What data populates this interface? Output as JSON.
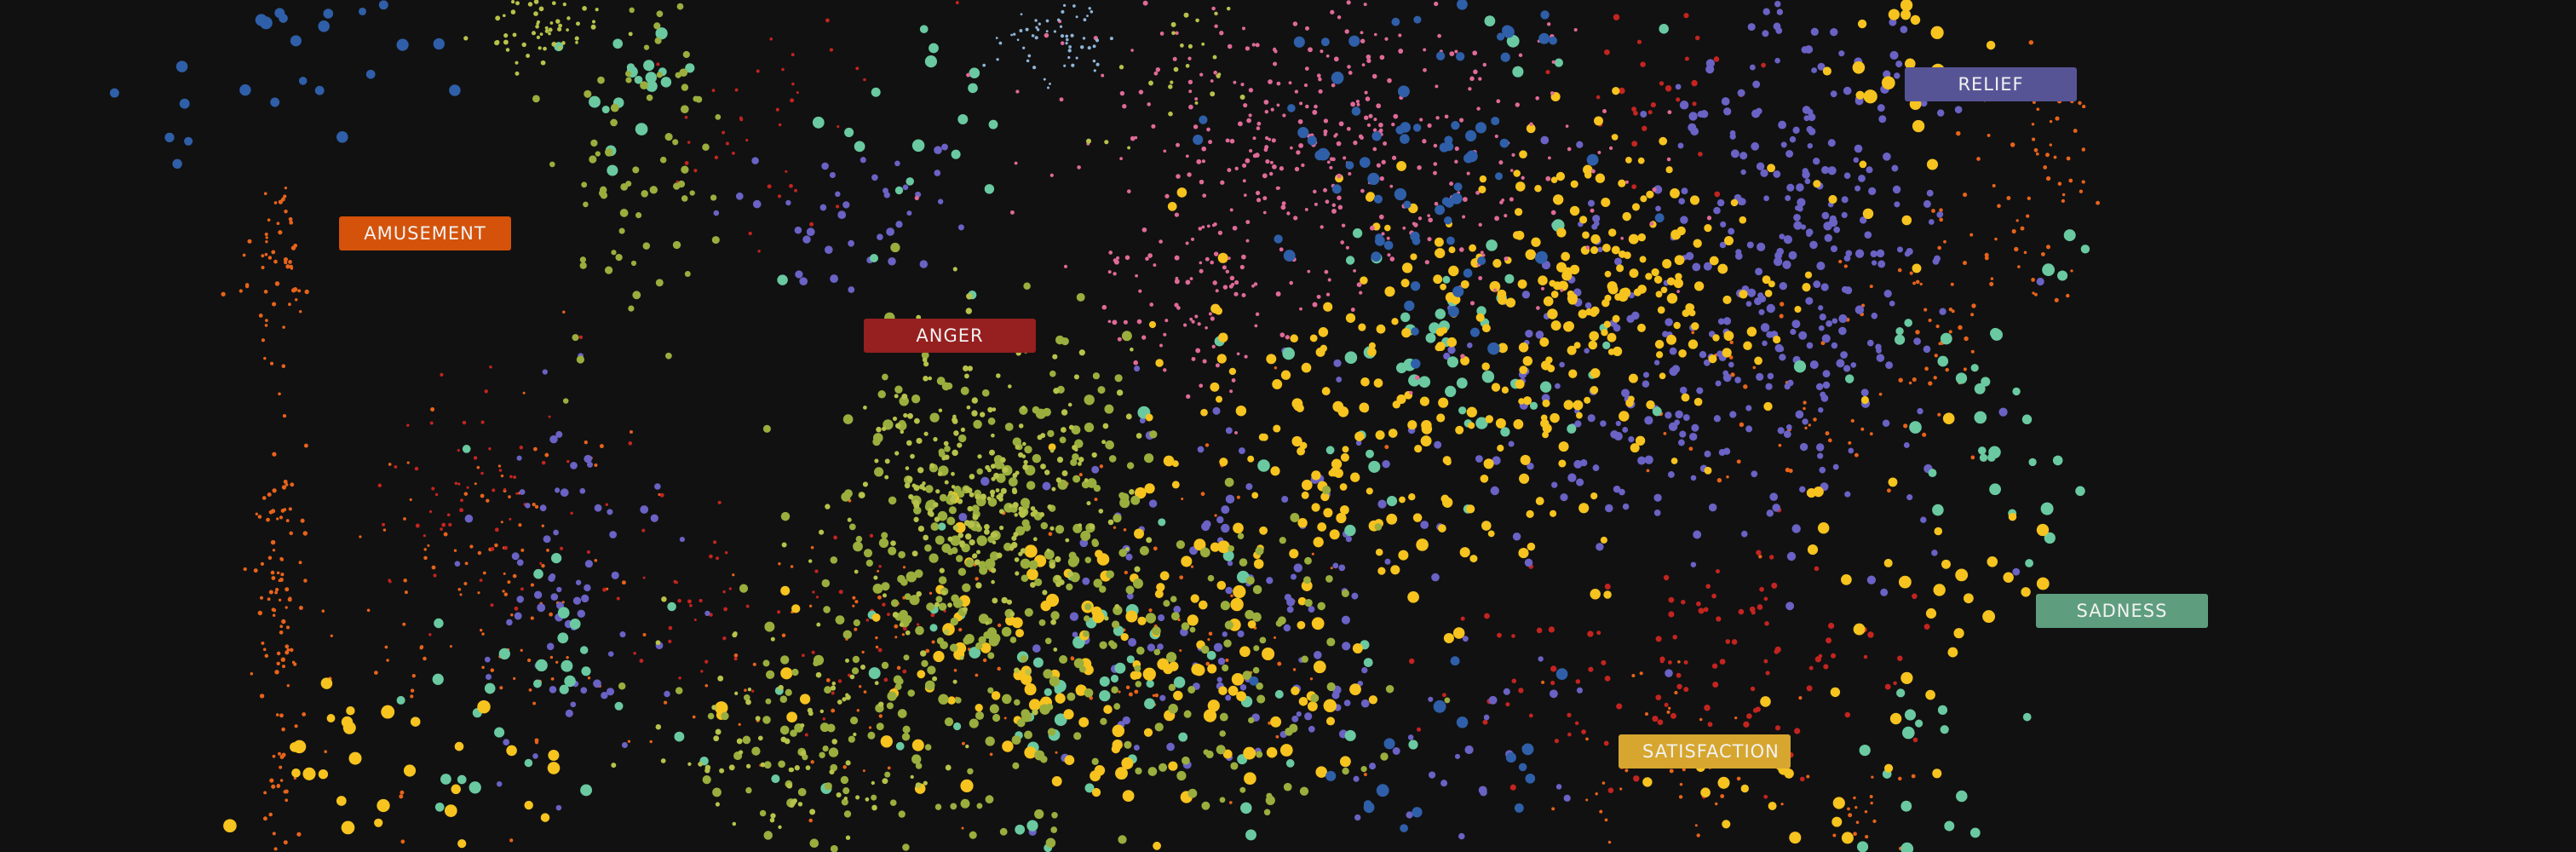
{
  "colors": {
    "background": "#111111",
    "amusement": "#d4520a",
    "anger": "#961f1f",
    "relief": "#575496",
    "sadness": "#5e9e7e",
    "satisfaction": "#d6a62e"
  },
  "chart_data": {
    "type": "scatter",
    "title": "",
    "xlabel": "",
    "ylabel": "",
    "grid": false,
    "axes_visible": false,
    "legend": "cluster labels placed directly on the map",
    "series": [
      {
        "name": "AMUSEMENT",
        "color": "#e8631a",
        "marker": "small dot"
      },
      {
        "name": "ANGER",
        "color": "#c42420",
        "marker": "small dot"
      },
      {
        "name": "RELIEF",
        "color": "#6a62c4",
        "marker": "medium dot"
      },
      {
        "name": "SADNESS",
        "color": "#6ac9a1",
        "marker": "large dot"
      },
      {
        "name": "SATISFACTION",
        "color": "#f6c31f",
        "marker": "large dot"
      },
      {
        "color": "#9aae3e",
        "marker": "medium dot"
      },
      {
        "color": "#e06a98",
        "marker": "small dot"
      },
      {
        "color": "#2f5fa8",
        "marker": "large dot"
      },
      {
        "color": "#b7c24a",
        "marker": "small dot"
      },
      {
        "color": "#8fb4d8",
        "marker": "small dot"
      }
    ]
  },
  "labels": {
    "amusement": "AMUSEMENT",
    "anger": "ANGER",
    "relief": "RELIEF",
    "sadness": "SADNESS",
    "satisfaction": "SATISFACTION"
  }
}
